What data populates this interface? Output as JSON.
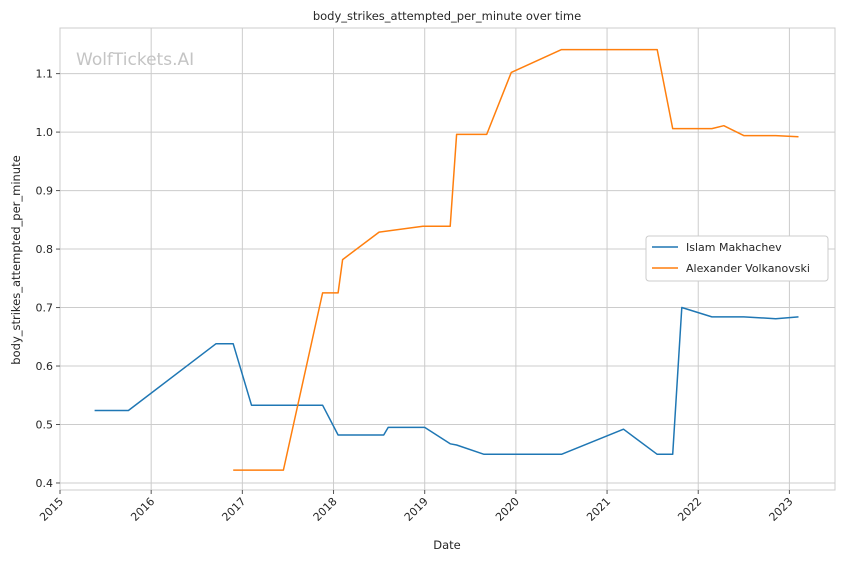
{
  "chart_data": {
    "type": "line",
    "title": "body_strikes_attempted_per_minute over time",
    "xlabel": "Date",
    "ylabel": "body_strikes_attempted_per_minute",
    "watermark": "WolfTickets.AI",
    "xlim": [
      2015.0,
      2023.5
    ],
    "ylim": [
      0.388,
      1.178
    ],
    "x_ticks": [
      2015,
      2016,
      2017,
      2018,
      2019,
      2020,
      2021,
      2022,
      2023
    ],
    "x_tick_labels": [
      "2015",
      "2016",
      "2017",
      "2018",
      "2019",
      "2020",
      "2021",
      "2022",
      "2023"
    ],
    "y_ticks": [
      0.4,
      0.5,
      0.6,
      0.7,
      0.8,
      0.9,
      1.0,
      1.1
    ],
    "y_tick_labels": [
      "0.4",
      "0.5",
      "0.6",
      "0.7",
      "0.8",
      "0.9",
      "1.0",
      "1.1"
    ],
    "grid": true,
    "legend_position": "center-right",
    "series": [
      {
        "name": "Islam Makhachev",
        "color": "#1f77b4",
        "x": [
          2015.38,
          2015.75,
          2016.71,
          2016.9,
          2017.1,
          2017.88,
          2018.05,
          2018.55,
          2018.6,
          2019.0,
          2019.28,
          2019.35,
          2019.65,
          2020.5,
          2021.18,
          2021.55,
          2021.72,
          2021.82,
          2022.15,
          2022.5,
          2022.85,
          2023.1
        ],
        "y": [
          0.524,
          0.524,
          0.638,
          0.638,
          0.533,
          0.533,
          0.482,
          0.482,
          0.495,
          0.495,
          0.467,
          0.465,
          0.449,
          0.449,
          0.492,
          0.449,
          0.449,
          0.7,
          0.684,
          0.684,
          0.681,
          0.684
        ]
      },
      {
        "name": "Alexander Volkanovski",
        "color": "#ff7f0e",
        "x": [
          2016.9,
          2017.45,
          2017.88,
          2018.05,
          2018.1,
          2018.5,
          2018.98,
          2019.28,
          2019.35,
          2019.68,
          2019.95,
          2020.5,
          2021.55,
          2021.72,
          2022.15,
          2022.28,
          2022.5,
          2022.85,
          2023.1
        ],
        "y": [
          0.422,
          0.422,
          0.725,
          0.725,
          0.782,
          0.829,
          0.839,
          0.839,
          0.996,
          0.996,
          1.102,
          1.141,
          1.141,
          1.006,
          1.006,
          1.011,
          0.994,
          0.994,
          0.992
        ]
      }
    ]
  }
}
